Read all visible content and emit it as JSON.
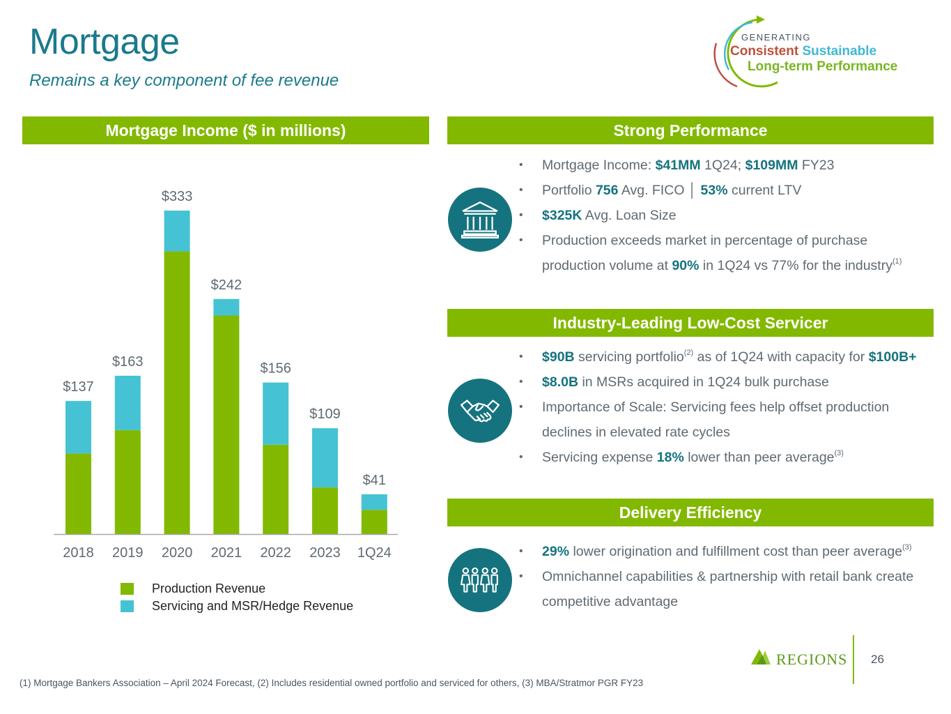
{
  "header": {
    "title": "Mortgage",
    "subtitle": "Remains a key component of fee revenue"
  },
  "logo": {
    "generating": "GENERATING",
    "consistent": "Consistent",
    "sustainable": "Sustainable",
    "long_term": "Long-term Performance"
  },
  "colors": {
    "production": "#82b900",
    "servicing": "#45c3d4",
    "teal": "#15737f",
    "band": "#82b900"
  },
  "left_panel": {
    "heading": "Mortgage Income ($ in millions)"
  },
  "chart_data": {
    "type": "bar",
    "stacked": true,
    "title": "Mortgage Income ($ in millions)",
    "categories": [
      "2018",
      "2019",
      "2020",
      "2021",
      "2022",
      "2023",
      "1Q24"
    ],
    "series": [
      {
        "name": "Production Revenue",
        "values": [
          83,
          107,
          291,
          225,
          92,
          48,
          25
        ]
      },
      {
        "name": "Servicing and MSR/Hedge Revenue",
        "values": [
          54,
          56,
          42,
          17,
          64,
          61,
          16
        ]
      }
    ],
    "total_labels": [
      "$137",
      "$163",
      "$333",
      "$242",
      "$156",
      "$109",
      "$41"
    ],
    "totals": [
      137,
      163,
      333,
      242,
      156,
      109,
      41
    ],
    "ylim": [
      0,
      333
    ],
    "xlabel": "",
    "ylabel": "",
    "legend_position": "bottom-left"
  },
  "legend": {
    "production": "Production Revenue",
    "servicing": "Servicing and MSR/Hedge Revenue"
  },
  "sections": {
    "strong": {
      "heading": "Strong Performance",
      "icon": "bank-building-icon",
      "b1": {
        "p1": "Mortgage Income: ",
        "v1": "$41MM",
        "p2": " 1Q24; ",
        "v2": "$109MM",
        "p3": " FY23"
      },
      "b2": {
        "p1": "Portfolio ",
        "v1": "756",
        "p2": " Avg. FICO │ ",
        "v2": "53%",
        "p3": " current LTV"
      },
      "b3": {
        "v1": "$325K",
        "p1": " Avg. Loan Size"
      },
      "b4": {
        "line1": "Production exceeds market in percentage of purchase",
        "p1": "production volume at ",
        "v1": "90%",
        "p2": " in 1Q24 vs 77% for the industry",
        "sup": "(1)"
      }
    },
    "servicer": {
      "heading": "Industry-Leading Low-Cost Servicer",
      "icon": "handshake-icon",
      "b1": {
        "v1": "$90B",
        "p1": " servicing portfolio",
        "sup": "(2)",
        "p2": " as of 1Q24 with capacity for ",
        "v2": "$100B+"
      },
      "b2": {
        "v1": "$8.0B",
        "p1": " in MSRs acquired in 1Q24 bulk purchase"
      },
      "b3": {
        "line1": "Importance of Scale: Servicing fees help offset production",
        "line2": "declines in elevated rate cycles"
      },
      "b4": {
        "p1": "Servicing expense ",
        "v1": "18%",
        "p2": " lower than peer average",
        "sup": "(3)"
      }
    },
    "delivery": {
      "heading": "Delivery Efficiency",
      "icon": "people-group-icon",
      "b1": {
        "v1": "29%",
        "p1": " lower origination and fulfillment cost than peer average",
        "sup": "(3)"
      },
      "b2": {
        "line1": "Omnichannel capabilities & partnership with retail bank create",
        "line2": "competitive advantage"
      }
    }
  },
  "footer": {
    "brand": "REGIONS",
    "page_number": "26",
    "footnote": "(1) Mortgage Bankers Association – April 2024 Forecast, (2) Includes residential owned portfolio and serviced for others, (3) MBA/Stratmor PGR FY23"
  }
}
